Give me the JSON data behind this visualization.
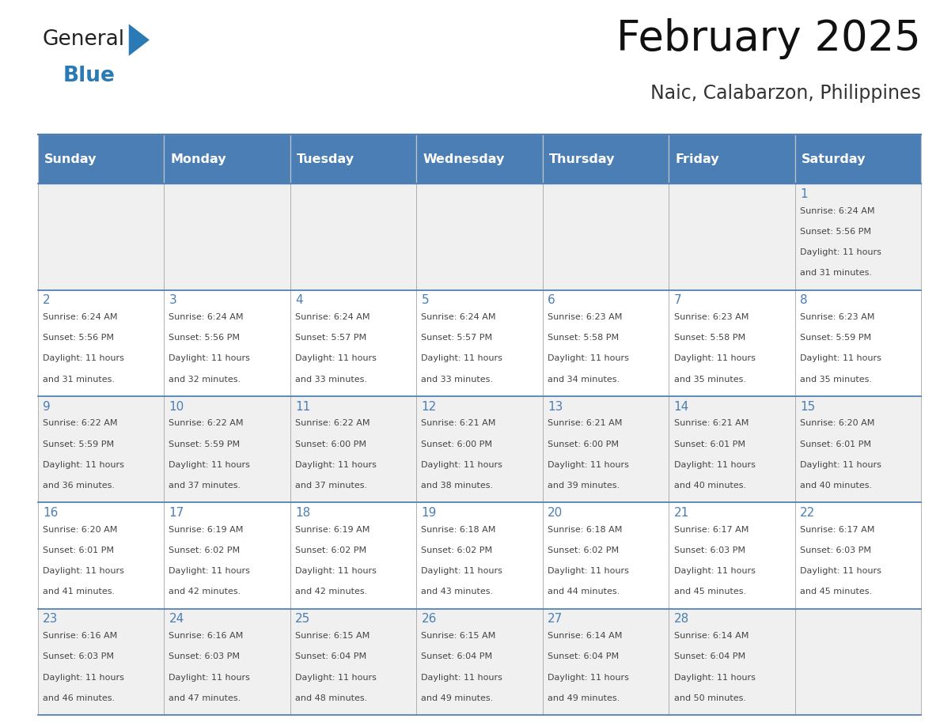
{
  "title": "February 2025",
  "subtitle": "Naic, Calabarzon, Philippines",
  "header_bg": "#4a7eb5",
  "header_text_color": "#ffffff",
  "day_names": [
    "Sunday",
    "Monday",
    "Tuesday",
    "Wednesday",
    "Thursday",
    "Friday",
    "Saturday"
  ],
  "cell_bg_row0": "#f0f0f0",
  "cell_bg_row1": "#ffffff",
  "cell_bg_row2": "#f0f0f0",
  "cell_bg_row3": "#ffffff",
  "cell_bg_row4": "#f0f0f0",
  "cell_border_color": "#4a7eb5",
  "cell_border_light": "#aaaaaa",
  "day_num_color": "#4a7eb5",
  "text_color": "#444444",
  "calendar_data": [
    [
      null,
      null,
      null,
      null,
      null,
      null,
      {
        "day": 1,
        "sunrise": "6:24 AM",
        "sunset": "5:56 PM",
        "daylight_hours": 11,
        "daylight_minutes": 31
      }
    ],
    [
      {
        "day": 2,
        "sunrise": "6:24 AM",
        "sunset": "5:56 PM",
        "daylight_hours": 11,
        "daylight_minutes": 31
      },
      {
        "day": 3,
        "sunrise": "6:24 AM",
        "sunset": "5:56 PM",
        "daylight_hours": 11,
        "daylight_minutes": 32
      },
      {
        "day": 4,
        "sunrise": "6:24 AM",
        "sunset": "5:57 PM",
        "daylight_hours": 11,
        "daylight_minutes": 33
      },
      {
        "day": 5,
        "sunrise": "6:24 AM",
        "sunset": "5:57 PM",
        "daylight_hours": 11,
        "daylight_minutes": 33
      },
      {
        "day": 6,
        "sunrise": "6:23 AM",
        "sunset": "5:58 PM",
        "daylight_hours": 11,
        "daylight_minutes": 34
      },
      {
        "day": 7,
        "sunrise": "6:23 AM",
        "sunset": "5:58 PM",
        "daylight_hours": 11,
        "daylight_minutes": 35
      },
      {
        "day": 8,
        "sunrise": "6:23 AM",
        "sunset": "5:59 PM",
        "daylight_hours": 11,
        "daylight_minutes": 35
      }
    ],
    [
      {
        "day": 9,
        "sunrise": "6:22 AM",
        "sunset": "5:59 PM",
        "daylight_hours": 11,
        "daylight_minutes": 36
      },
      {
        "day": 10,
        "sunrise": "6:22 AM",
        "sunset": "5:59 PM",
        "daylight_hours": 11,
        "daylight_minutes": 37
      },
      {
        "day": 11,
        "sunrise": "6:22 AM",
        "sunset": "6:00 PM",
        "daylight_hours": 11,
        "daylight_minutes": 37
      },
      {
        "day": 12,
        "sunrise": "6:21 AM",
        "sunset": "6:00 PM",
        "daylight_hours": 11,
        "daylight_minutes": 38
      },
      {
        "day": 13,
        "sunrise": "6:21 AM",
        "sunset": "6:00 PM",
        "daylight_hours": 11,
        "daylight_minutes": 39
      },
      {
        "day": 14,
        "sunrise": "6:21 AM",
        "sunset": "6:01 PM",
        "daylight_hours": 11,
        "daylight_minutes": 40
      },
      {
        "day": 15,
        "sunrise": "6:20 AM",
        "sunset": "6:01 PM",
        "daylight_hours": 11,
        "daylight_minutes": 40
      }
    ],
    [
      {
        "day": 16,
        "sunrise": "6:20 AM",
        "sunset": "6:01 PM",
        "daylight_hours": 11,
        "daylight_minutes": 41
      },
      {
        "day": 17,
        "sunrise": "6:19 AM",
        "sunset": "6:02 PM",
        "daylight_hours": 11,
        "daylight_minutes": 42
      },
      {
        "day": 18,
        "sunrise": "6:19 AM",
        "sunset": "6:02 PM",
        "daylight_hours": 11,
        "daylight_minutes": 42
      },
      {
        "day": 19,
        "sunrise": "6:18 AM",
        "sunset": "6:02 PM",
        "daylight_hours": 11,
        "daylight_minutes": 43
      },
      {
        "day": 20,
        "sunrise": "6:18 AM",
        "sunset": "6:02 PM",
        "daylight_hours": 11,
        "daylight_minutes": 44
      },
      {
        "day": 21,
        "sunrise": "6:17 AM",
        "sunset": "6:03 PM",
        "daylight_hours": 11,
        "daylight_minutes": 45
      },
      {
        "day": 22,
        "sunrise": "6:17 AM",
        "sunset": "6:03 PM",
        "daylight_hours": 11,
        "daylight_minutes": 45
      }
    ],
    [
      {
        "day": 23,
        "sunrise": "6:16 AM",
        "sunset": "6:03 PM",
        "daylight_hours": 11,
        "daylight_minutes": 46
      },
      {
        "day": 24,
        "sunrise": "6:16 AM",
        "sunset": "6:03 PM",
        "daylight_hours": 11,
        "daylight_minutes": 47
      },
      {
        "day": 25,
        "sunrise": "6:15 AM",
        "sunset": "6:04 PM",
        "daylight_hours": 11,
        "daylight_minutes": 48
      },
      {
        "day": 26,
        "sunrise": "6:15 AM",
        "sunset": "6:04 PM",
        "daylight_hours": 11,
        "daylight_minutes": 49
      },
      {
        "day": 27,
        "sunrise": "6:14 AM",
        "sunset": "6:04 PM",
        "daylight_hours": 11,
        "daylight_minutes": 49
      },
      {
        "day": 28,
        "sunrise": "6:14 AM",
        "sunset": "6:04 PM",
        "daylight_hours": 11,
        "daylight_minutes": 50
      },
      null
    ]
  ],
  "logo_general_color": "#222222",
  "logo_blue_color": "#2a7ab5",
  "logo_triangle_color": "#2a7ab5",
  "fig_width": 11.88,
  "fig_height": 9.18,
  "dpi": 100
}
